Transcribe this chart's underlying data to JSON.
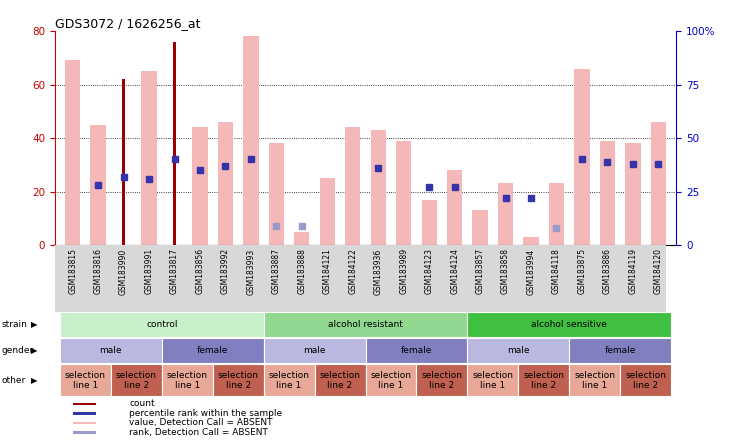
{
  "title": "GDS3072 / 1626256_at",
  "samples": [
    "GSM183815",
    "GSM183816",
    "GSM183990",
    "GSM183991",
    "GSM183817",
    "GSM183856",
    "GSM183992",
    "GSM183993",
    "GSM183887",
    "GSM183888",
    "GSM184121",
    "GSM184122",
    "GSM183936",
    "GSM183989",
    "GSM184123",
    "GSM184124",
    "GSM183857",
    "GSM183858",
    "GSM183994",
    "GSM184118",
    "GSM183875",
    "GSM183886",
    "GSM184119",
    "GSM184120"
  ],
  "pink_values": [
    69,
    45,
    0,
    65,
    0,
    44,
    46,
    78,
    38,
    5,
    25,
    44,
    43,
    39,
    17,
    28,
    13,
    23,
    3,
    23,
    66,
    39,
    38,
    46
  ],
  "red_values": [
    0,
    0,
    62,
    0,
    76,
    0,
    0,
    0,
    0,
    0,
    0,
    0,
    0,
    0,
    0,
    0,
    0,
    0,
    0,
    0,
    0,
    0,
    0,
    0
  ],
  "blue_sq": [
    null,
    28,
    32,
    31,
    40,
    35,
    37,
    40,
    null,
    null,
    null,
    null,
    36,
    null,
    27,
    27,
    null,
    22,
    22,
    null,
    40,
    39,
    38,
    38
  ],
  "lavender_sq": [
    null,
    null,
    null,
    null,
    null,
    null,
    null,
    null,
    9,
    9,
    null,
    null,
    null,
    null,
    null,
    null,
    null,
    null,
    null,
    8,
    null,
    null,
    null,
    null
  ],
  "ylim_left": [
    0,
    80
  ],
  "ylim_right": [
    0,
    100
  ],
  "yticks_left": [
    0,
    20,
    40,
    60,
    80
  ],
  "yticks_right": [
    0,
    25,
    50,
    75,
    100
  ],
  "strain_groups": [
    {
      "label": "control",
      "start": 0,
      "end": 8,
      "color": "#c8f0c8"
    },
    {
      "label": "alcohol resistant",
      "start": 8,
      "end": 16,
      "color": "#90d890"
    },
    {
      "label": "alcohol sensitive",
      "start": 16,
      "end": 24,
      "color": "#40c040"
    }
  ],
  "gender_groups": [
    {
      "label": "male",
      "start": 0,
      "end": 4,
      "color": "#b8b8e0"
    },
    {
      "label": "female",
      "start": 4,
      "end": 8,
      "color": "#8080c0"
    },
    {
      "label": "male",
      "start": 8,
      "end": 12,
      "color": "#b8b8e0"
    },
    {
      "label": "female",
      "start": 12,
      "end": 16,
      "color": "#8080c0"
    },
    {
      "label": "male",
      "start": 16,
      "end": 20,
      "color": "#b8b8e0"
    },
    {
      "label": "female",
      "start": 20,
      "end": 24,
      "color": "#8080c0"
    }
  ],
  "other_groups": [
    {
      "label": "selection\nline 1",
      "start": 0,
      "end": 2,
      "color": "#e8a898"
    },
    {
      "label": "selection\nline 2",
      "start": 2,
      "end": 4,
      "color": "#c06050"
    },
    {
      "label": "selection\nline 1",
      "start": 4,
      "end": 6,
      "color": "#e8a898"
    },
    {
      "label": "selection\nline 2",
      "start": 6,
      "end": 8,
      "color": "#c06050"
    },
    {
      "label": "selection\nline 1",
      "start": 8,
      "end": 10,
      "color": "#e8a898"
    },
    {
      "label": "selection\nline 2",
      "start": 10,
      "end": 12,
      "color": "#c06050"
    },
    {
      "label": "selection\nline 1",
      "start": 12,
      "end": 14,
      "color": "#e8a898"
    },
    {
      "label": "selection\nline 2",
      "start": 14,
      "end": 16,
      "color": "#c06050"
    },
    {
      "label": "selection\nline 1",
      "start": 16,
      "end": 18,
      "color": "#e8a898"
    },
    {
      "label": "selection\nline 2",
      "start": 18,
      "end": 20,
      "color": "#c06050"
    },
    {
      "label": "selection\nline 1",
      "start": 20,
      "end": 22,
      "color": "#e8a898"
    },
    {
      "label": "selection\nline 2",
      "start": 22,
      "end": 24,
      "color": "#c06050"
    }
  ],
  "pink_color": "#f4b8b8",
  "red_color": "#990000",
  "blue_color": "#3333aa",
  "lavender_color": "#9999cc",
  "bg_color": "#ffffff",
  "left_axis_color": "#cc0000",
  "right_axis_color": "#0000cc",
  "row_labels": [
    "strain",
    "gender",
    "other"
  ],
  "legend_items": [
    {
      "color": "#990000",
      "label": "count"
    },
    {
      "color": "#3333aa",
      "label": "percentile rank within the sample"
    },
    {
      "color": "#f4b8b8",
      "label": "value, Detection Call = ABSENT"
    },
    {
      "color": "#9999cc",
      "label": "rank, Detection Call = ABSENT"
    }
  ]
}
